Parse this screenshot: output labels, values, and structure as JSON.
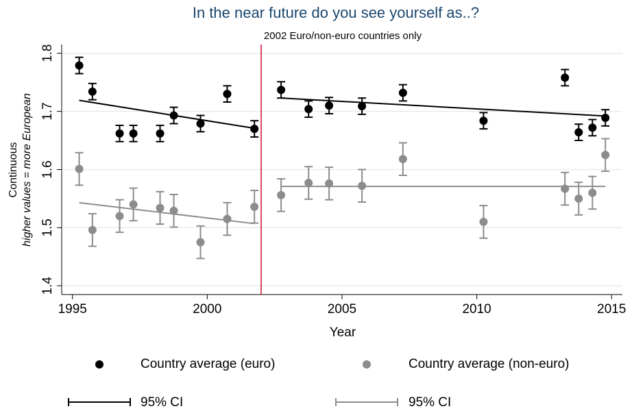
{
  "chart_data": {
    "type": "scatter",
    "title": "In the near future do you see yourself as..?",
    "subtitle": "2002 Euro/non-euro countries only",
    "x_label": "Year",
    "y_label": [
      "Continuous",
      "higher values = more European"
    ],
    "xlim": [
      1994.6,
      2015.4
    ],
    "xticks": [
      1995,
      2000,
      2005,
      2010,
      2015
    ],
    "ylim": [
      1.385,
      1.815
    ],
    "yticks": [
      1.4,
      1.5,
      1.6,
      1.7,
      1.8
    ],
    "grid": true,
    "vline": {
      "x": 2002,
      "color": "#c8102e"
    },
    "series": [
      {
        "name": "Country average (euro)",
        "ci_label": "95% CI",
        "color": "#000000",
        "x": [
          1995.25,
          1995.74,
          1996.75,
          1997.26,
          1998.25,
          1998.76,
          1999.75,
          2000.74,
          2001.75,
          2002.74,
          2003.76,
          2004.52,
          2005.74,
          2007.26,
          2010.25,
          2013.27,
          2013.78,
          2014.29,
          2014.77
        ],
        "values": [
          1.779,
          1.734,
          1.662,
          1.662,
          1.662,
          1.693,
          1.679,
          1.73,
          1.67,
          1.737,
          1.704,
          1.71,
          1.709,
          1.732,
          1.684,
          1.758,
          1.664,
          1.672,
          1.689
        ],
        "errors": [
          0.014,
          0.014,
          0.014,
          0.014,
          0.014,
          0.014,
          0.014,
          0.014,
          0.014,
          0.014,
          0.014,
          0.014,
          0.014,
          0.014,
          0.014,
          0.014,
          0.014,
          0.014,
          0.014
        ],
        "fits": [
          {
            "x": [
              1995.25,
              2001.75
            ],
            "values": [
              1.719,
              1.671
            ]
          },
          {
            "x": [
              2002.74,
              2014.77
            ],
            "values": [
              1.723,
              1.692
            ]
          }
        ]
      },
      {
        "name": "Country average (non-euro)",
        "ci_label": "95% CI",
        "color": "#8c8c8c",
        "x": [
          1995.25,
          1995.74,
          1996.75,
          1997.26,
          1998.25,
          1998.76,
          1999.75,
          2000.74,
          2001.75,
          2002.74,
          2003.76,
          2004.52,
          2005.74,
          2007.26,
          2010.25,
          2013.27,
          2013.78,
          2014.29,
          2014.77
        ],
        "values": [
          1.601,
          1.496,
          1.52,
          1.54,
          1.534,
          1.529,
          1.475,
          1.515,
          1.536,
          1.556,
          1.577,
          1.576,
          1.572,
          1.618,
          1.51,
          1.567,
          1.55,
          1.56,
          1.625
        ],
        "errors": [
          0.028,
          0.028,
          0.028,
          0.028,
          0.028,
          0.028,
          0.028,
          0.028,
          0.028,
          0.028,
          0.028,
          0.028,
          0.028,
          0.028,
          0.028,
          0.028,
          0.028,
          0.028,
          0.028
        ],
        "fits": [
          {
            "x": [
              1995.25,
              2001.75
            ],
            "values": [
              1.543,
              1.507
            ]
          },
          {
            "x": [
              2002.74,
              2014.77
            ],
            "values": [
              1.571,
              1.571
            ]
          }
        ]
      }
    ]
  }
}
